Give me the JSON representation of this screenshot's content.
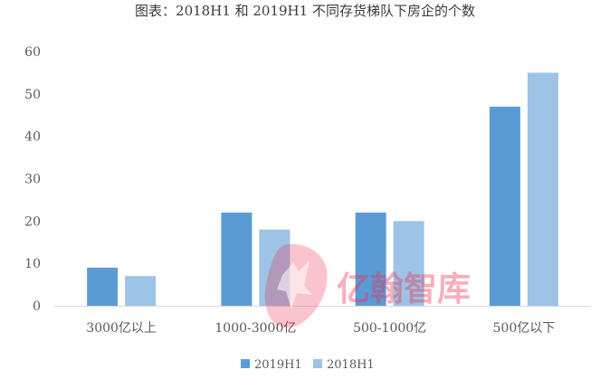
{
  "chart_data": {
    "type": "bar",
    "title": "图表：2018H1 和 2019H1 不同存货梯队下房企的个数",
    "categories": [
      "3000亿以上",
      "1000-3000亿",
      "500-1000亿",
      "500亿以下"
    ],
    "series": [
      {
        "name": "2019H1",
        "values": [
          9,
          22,
          22,
          47
        ],
        "color": "#5b9bd5"
      },
      {
        "name": "2018H1",
        "values": [
          7,
          18,
          20,
          55
        ],
        "color": "#9dc3e6"
      }
    ],
    "ylim": [
      0,
      60
    ],
    "yticks": [
      0,
      10,
      20,
      30,
      40,
      50,
      60
    ],
    "grid": false,
    "legend": "bottom"
  },
  "watermark": {
    "text": "亿翰智库",
    "color": "#ee2a50"
  }
}
